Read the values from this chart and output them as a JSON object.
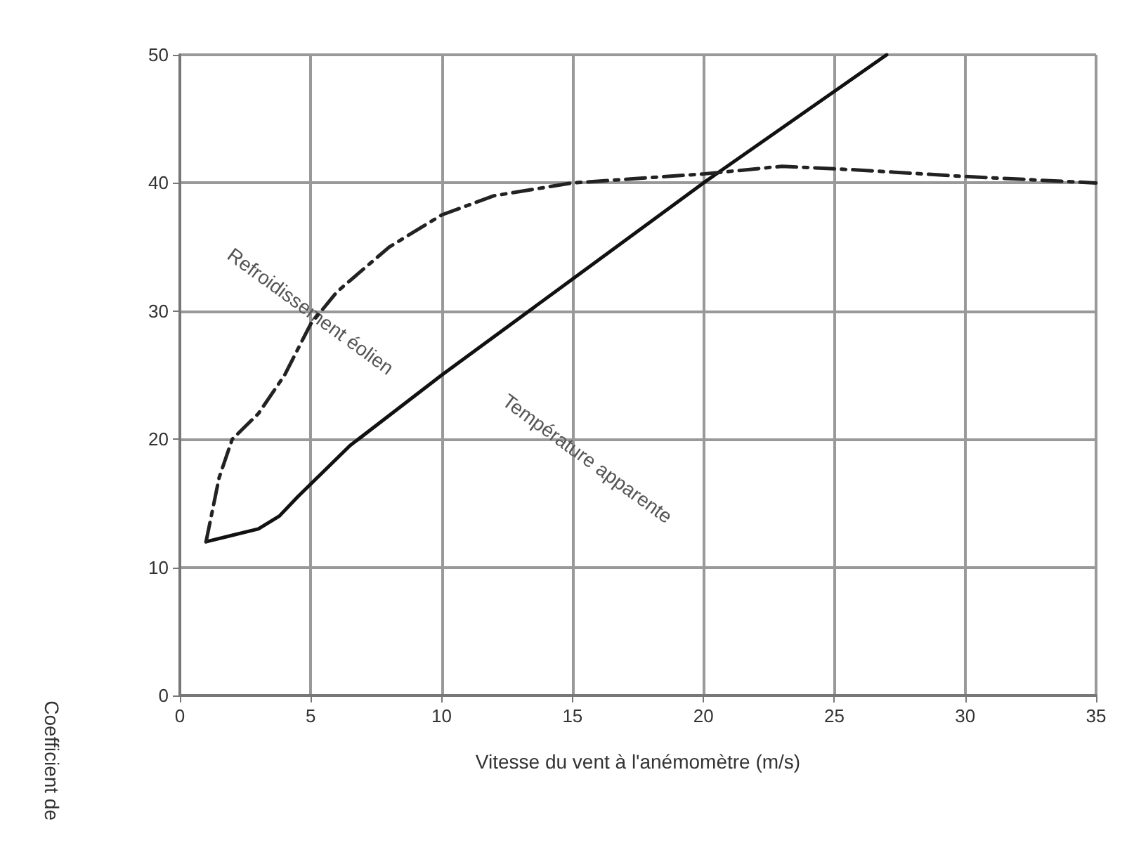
{
  "chart_data": {
    "type": "line",
    "xlabel": "Vitesse du vent à l'anémomètre (m/s)",
    "ylabel": "Coefficient de",
    "xlim": [
      0,
      35
    ],
    "xticks": [
      0,
      5,
      10,
      15,
      20,
      25,
      30,
      35
    ],
    "ylim": [
      0,
      50
    ],
    "yticks": [
      0,
      10,
      20,
      30,
      40,
      50
    ],
    "grid": true,
    "marker": "none",
    "series": [
      {
        "color": "#111111",
        "line_style": "solid",
        "x": [
          1,
          2,
          3,
          3.8,
          4.5,
          5.5,
          6.5,
          10,
          15,
          20,
          27
        ],
        "values": [
          12,
          12.5,
          13,
          14,
          15.5,
          17.5,
          19.5,
          25,
          32.5,
          40,
          50
        ]
      },
      {
        "color": "#222222",
        "line_style": "dashed",
        "x": [
          1,
          1.5,
          2,
          3,
          4,
          5,
          6,
          8,
          10,
          12,
          15,
          20,
          23,
          26,
          30,
          35
        ],
        "values": [
          12,
          17,
          20,
          22,
          25,
          29,
          31.5,
          35,
          37.5,
          39,
          40,
          40.7,
          41.3,
          41,
          40.5,
          40
        ]
      }
    ],
    "annotations": [
      {
        "text": "Refroidissement éolien",
        "x": 5,
        "y": 30
      },
      "Température apparente"
    ]
  }
}
